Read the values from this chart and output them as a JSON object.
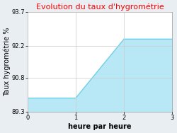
{
  "title": "Evolution du taux d'hygrométrie",
  "xlabel": "heure par heure",
  "ylabel": "Taux hygrométrie %",
  "x": [
    0,
    1,
    2,
    3
  ],
  "y": [
    89.9,
    89.9,
    92.5,
    92.5
  ],
  "ylim": [
    89.3,
    93.7
  ],
  "xlim": [
    0,
    3
  ],
  "yticks": [
    89.3,
    90.8,
    92.2,
    93.7
  ],
  "xticks": [
    0,
    1,
    2,
    3
  ],
  "line_color": "#6dd0e8",
  "fill_color": "#b8e8f5",
  "fig_bg_color": "#e8eef2",
  "plot_bg_color": "#ffffff",
  "title_color": "#ff0000",
  "title_fontsize": 8,
  "axis_fontsize": 6,
  "label_fontsize": 7,
  "figsize": [
    2.5,
    1.88
  ],
  "dpi": 100
}
